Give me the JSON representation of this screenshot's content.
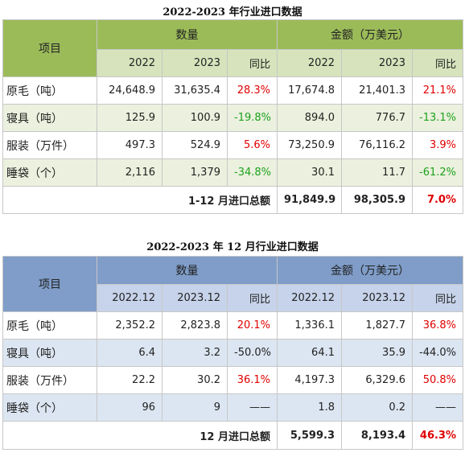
{
  "table1": {
    "title": "2022-2023 年行业进口数据",
    "headers": {
      "item": "项目",
      "qty": "数量",
      "amount": "金额（万美元）"
    },
    "sub": [
      "2022",
      "2023",
      "同比",
      "2022",
      "2023",
      "同比"
    ],
    "rows": [
      {
        "label": "原毛（吨）",
        "q22": "24,648.9",
        "q23": "31,635.4",
        "qyoy": "28.3%",
        "a22": "17,674.8",
        "a23": "21,401.3",
        "ayoy": "21.1%"
      },
      {
        "label": "寝具（吨）",
        "q22": "125.9",
        "q23": "100.9",
        "qyoy": "-19.8%",
        "a22": "894.0",
        "a23": "776.7",
        "ayoy": "-13.1%"
      },
      {
        "label": "服装（万件）",
        "q22": "497.3",
        "q23": "524.9",
        "qyoy": "5.6%",
        "a22": "73,250.9",
        "a23": "76,116.2",
        "ayoy": "3.9%"
      },
      {
        "label": "睡袋（个）",
        "q22": "2,116",
        "q23": "1,379",
        "qyoy": "-34.8%",
        "a22": "30.1",
        "a23": "11.7",
        "ayoy": "-61.2%"
      }
    ],
    "total": {
      "label": "1-12 月进口总额",
      "a22": "91,849.9",
      "a23": "98,305.9",
      "yoy": "7.0%"
    }
  },
  "table2": {
    "title": "2022-2023 年 12 月行业进口数据",
    "headers": {
      "item": "项目",
      "qty": "数量",
      "amount": "金额（万美元）"
    },
    "sub": [
      "2022.12",
      "2023.12",
      "同比",
      "2022.12",
      "2023.12",
      "同比"
    ],
    "rows": [
      {
        "label": "原毛（吨）",
        "q22": "2,352.2",
        "q23": "2,823.8",
        "qyoy": "20.1%",
        "a22": "1,336.1",
        "a23": "1,827.7",
        "ayoy": "36.8%"
      },
      {
        "label": "寝具（吨）",
        "q22": "6.4",
        "q23": "3.2",
        "qyoy": "-50.0%",
        "a22": "64.1",
        "a23": "35.9",
        "ayoy": "-44.0%"
      },
      {
        "label": "服装（万件）",
        "q22": "22.2",
        "q23": "30.2",
        "qyoy": "36.1%",
        "a22": "4,197.3",
        "a23": "6,329.6",
        "ayoy": "50.8%"
      },
      {
        "label": "睡袋（个）",
        "q22": "96",
        "q23": "9",
        "qyoy": "——",
        "a22": "1.8",
        "a23": "0.2",
        "ayoy": "——"
      }
    ],
    "total": {
      "label": "12 月进口总额",
      "a22": "5,599.3",
      "a23": "8,193.4",
      "yoy": "46.3%"
    }
  },
  "colors": {
    "increase": "#e00000",
    "decrease": "#1ea11e",
    "table1_header": "#9bbb59",
    "table2_header": "#7f9dc8"
  }
}
